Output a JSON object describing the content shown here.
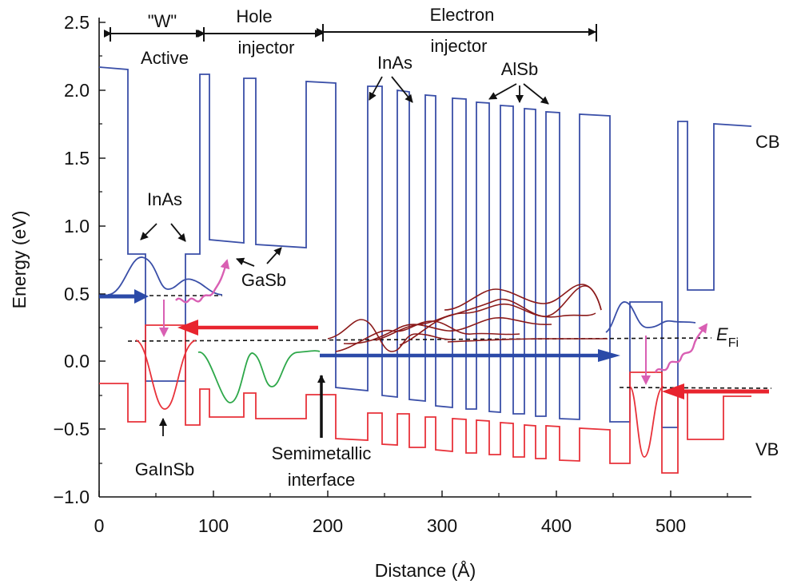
{
  "axes": {
    "x_title": "Distance (Å)",
    "y_title": "Energy (eV)",
    "x_ticks": [
      "0",
      "100",
      "200",
      "300",
      "400",
      "500"
    ],
    "y_ticks": [
      "2.5",
      "2.0",
      "1.5",
      "1.0",
      "0.5",
      "0.0",
      "−0.5",
      "−1.0"
    ]
  },
  "regions": {
    "w_label": "\"W\"",
    "w_sub": "Active",
    "hole_1": "Hole",
    "hole_2": "injector",
    "electron_1": "Electron",
    "electron_2": "injector"
  },
  "labels": {
    "inas_top": "InAs",
    "alsb": "AlSb",
    "cb": "CB",
    "vb": "VB",
    "inas_left": "InAs",
    "gasb": "GaSb",
    "galnsb": "GaInSb",
    "semi_1": "Semimetallic",
    "semi_2": "interface",
    "efi_main": "E",
    "efi_sub": "Fi"
  },
  "colors": {
    "cb": "#3a4fa8",
    "vb": "#e8323a",
    "wave_dark": "#8b1a1a",
    "wave_green": "#2ea84a",
    "photon": "#d95fb3",
    "arrow_blue": "#2b4aa8",
    "arrow_red": "#e8242e"
  }
}
